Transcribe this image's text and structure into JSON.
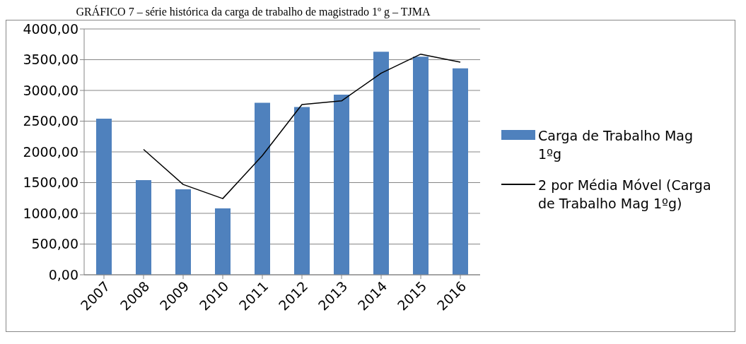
{
  "chart_data": {
    "type": "bar",
    "title": "GRÁFICO 7 – série histórica da carga de trabalho de magistrado 1º g – TJMA",
    "categories": [
      "2007",
      "2008",
      "2009",
      "2010",
      "2011",
      "2012",
      "2013",
      "2014",
      "2015",
      "2016"
    ],
    "series": [
      {
        "name": "Carga de Trabalho Mag 1ºg",
        "color": "#4f81bd",
        "values": [
          2540,
          1540,
          1390,
          1080,
          2800,
          2730,
          2930,
          3630,
          3550,
          3360
        ]
      },
      {
        "name": "2 por Média Móvel (Carga de Trabalho Mag 1ºg)",
        "type": "line",
        "color": "#000000",
        "values": [
          null,
          2040,
          1470,
          1240,
          1940,
          2770,
          2830,
          3280,
          3590,
          3460
        ]
      }
    ],
    "ylim": [
      0,
      4000
    ],
    "yticks": [
      {
        "value": 0,
        "label": "0,00"
      },
      {
        "value": 500,
        "label": "500,00"
      },
      {
        "value": 1000,
        "label": "1000,00"
      },
      {
        "value": 1500,
        "label": "1500,00"
      },
      {
        "value": 2000,
        "label": "2000,00"
      },
      {
        "value": 2500,
        "label": "2500,00"
      },
      {
        "value": 3000,
        "label": "3000,00"
      },
      {
        "value": 3500,
        "label": "3500,00"
      },
      {
        "value": 4000,
        "label": "4000,00"
      }
    ],
    "grid": "y",
    "legend": "right",
    "marker": "none",
    "line_style": "solid"
  }
}
